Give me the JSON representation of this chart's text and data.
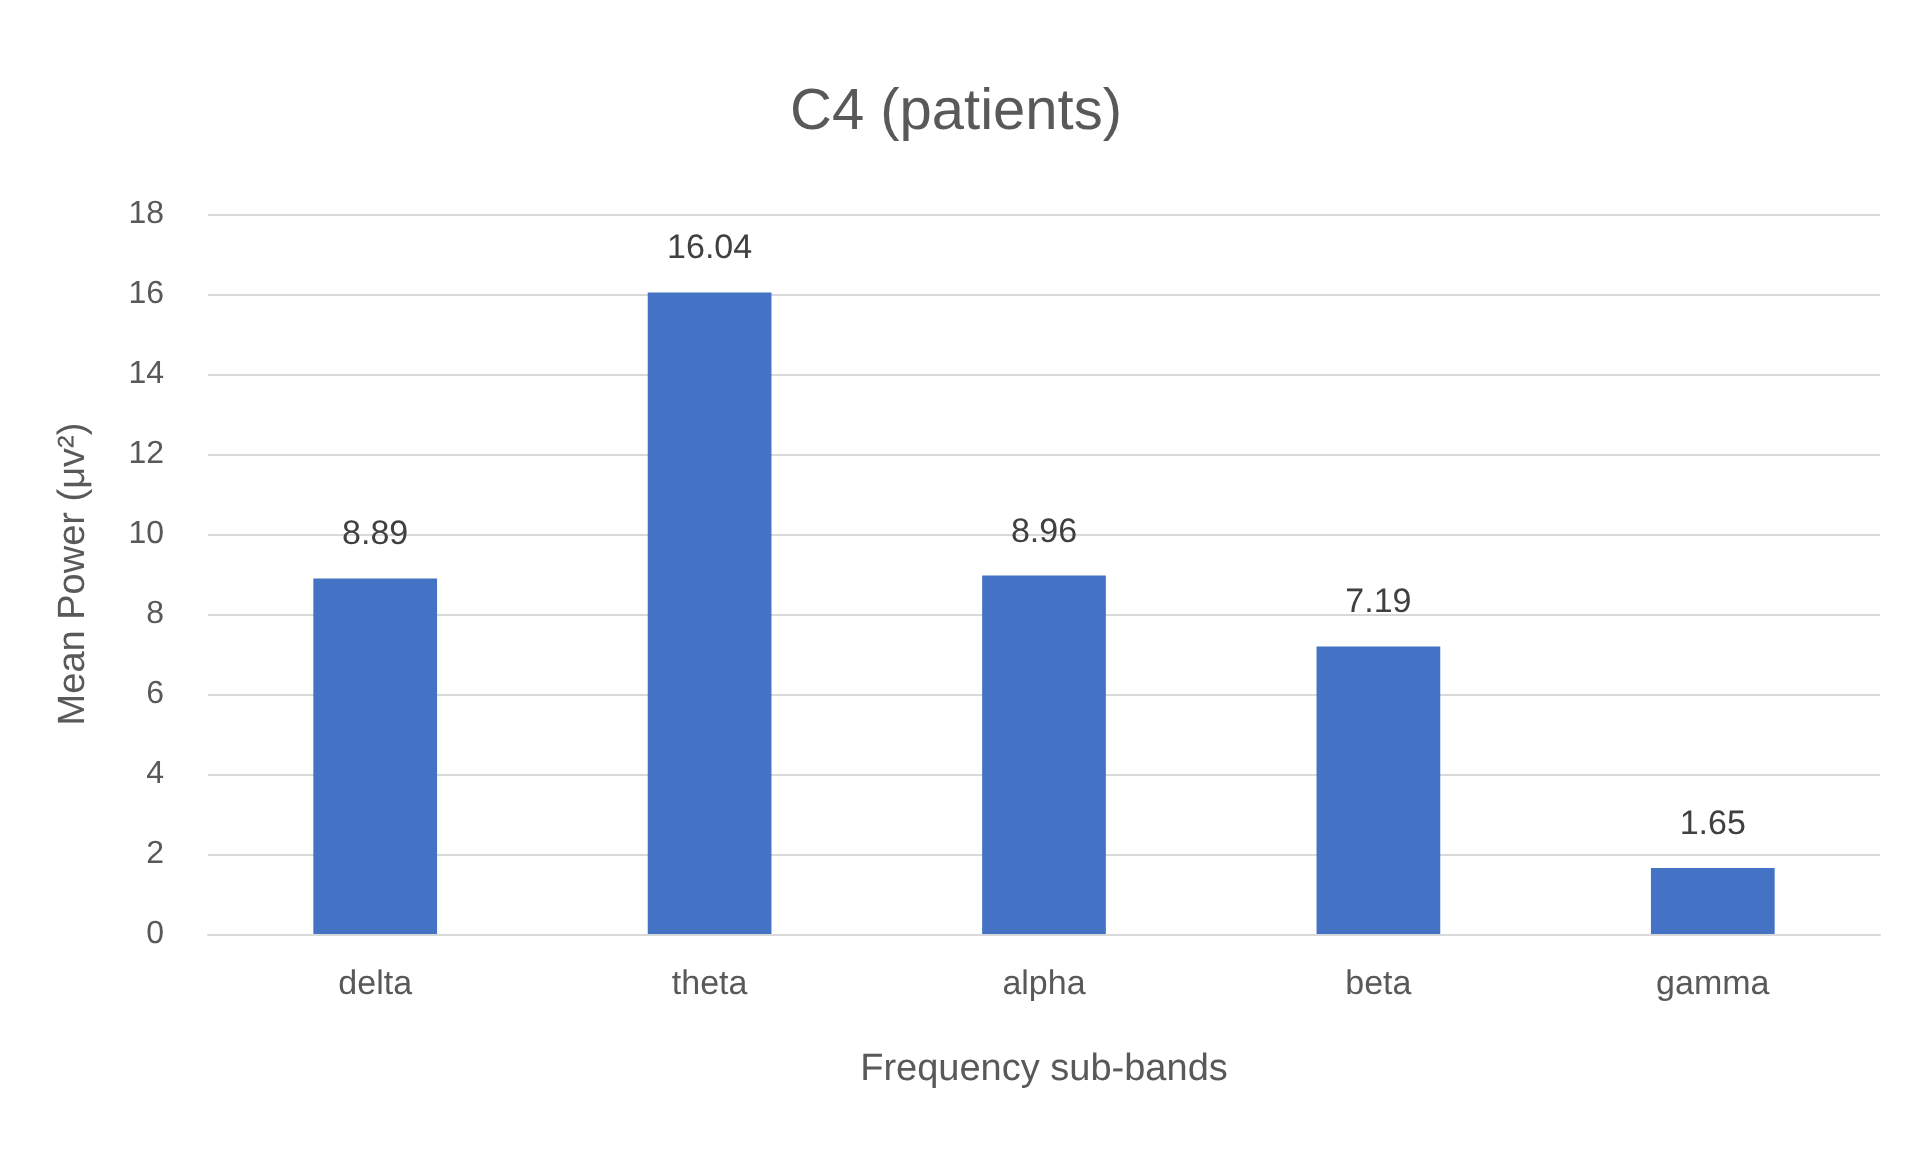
{
  "chart_data": {
    "type": "bar",
    "title": "C4 (patients)",
    "xlabel": "Frequency sub-bands",
    "ylabel": "Mean Power (μv²)",
    "categories": [
      "delta",
      "theta",
      "alpha",
      "beta",
      "gamma"
    ],
    "values": [
      8.89,
      16.04,
      8.96,
      7.19,
      1.65
    ],
    "color": "#4472c4",
    "ylim": [
      0,
      18
    ],
    "yticks": [
      0,
      2,
      4,
      6,
      8,
      10,
      12,
      14,
      16,
      18
    ],
    "grid": "y",
    "data_labels": true
  }
}
